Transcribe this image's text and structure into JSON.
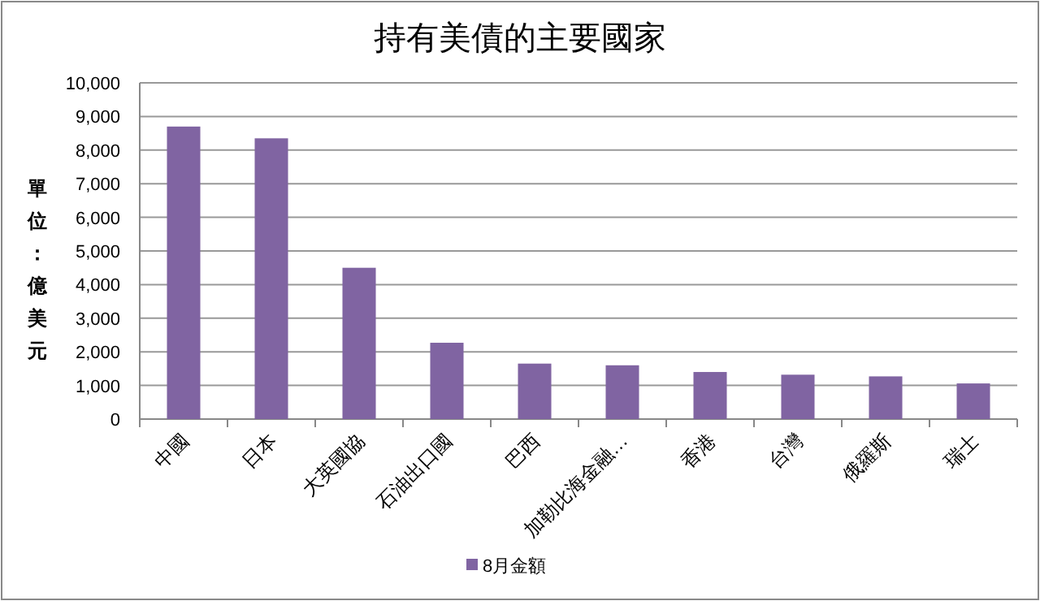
{
  "chart_data": {
    "type": "bar",
    "title": "持有美債的主要國家",
    "ylabel": "單位：億美元",
    "categories": [
      "中國",
      "日本",
      "大英國協",
      "石油出口國",
      "巴西",
      "加勒比海金融…",
      "香港",
      "台灣",
      "俄羅斯",
      "瑞士"
    ],
    "series": [
      {
        "name": "8月金額",
        "color": "#8064a2",
        "values": [
          8700,
          8350,
          4500,
          2270,
          1650,
          1600,
          1400,
          1320,
          1270,
          1060
        ]
      }
    ],
    "ylim": [
      0,
      10000
    ],
    "yticks": [
      {
        "value": 0,
        "label": "0"
      },
      {
        "value": 1000,
        "label": "1,000"
      },
      {
        "value": 2000,
        "label": "2,000"
      },
      {
        "value": 3000,
        "label": "3,000"
      },
      {
        "value": 4000,
        "label": "4,000"
      },
      {
        "value": 5000,
        "label": "5,000"
      },
      {
        "value": 6000,
        "label": "6,000"
      },
      {
        "value": 7000,
        "label": "7,000"
      },
      {
        "value": 8000,
        "label": "8,000"
      },
      {
        "value": 9000,
        "label": "9,000"
      },
      {
        "value": 10000,
        "label": "10,000"
      }
    ],
    "grid": "y",
    "legend": "bottom"
  }
}
